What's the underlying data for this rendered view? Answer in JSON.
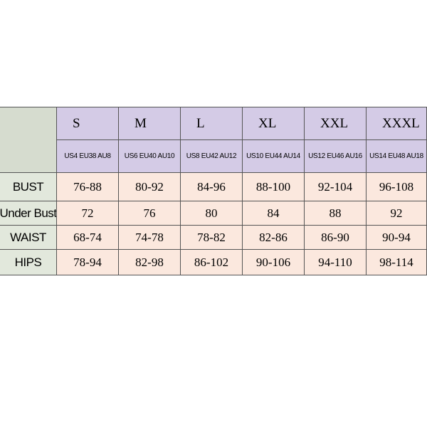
{
  "table": {
    "sizes": [
      "S",
      "M",
      "L",
      "XL",
      "XXL",
      "XXXL"
    ],
    "codes": [
      "US4 EU38 AU8",
      "US6 EU40 AU10",
      "US8 EU42  AU12",
      "US10  EU44 AU14",
      "US12 EU46 AU16",
      "US14 EU48 AU18"
    ],
    "rows": [
      [
        "BUST",
        "76-88",
        "80-92",
        "84-96",
        "88-100",
        "92-104",
        "96-108"
      ],
      [
        "Under Bust",
        "72",
        "76",
        "80",
        "84",
        "88",
        "92"
      ],
      [
        "WAIST",
        "68-74",
        "74-78",
        "78-82",
        "82-86",
        "86-90",
        "90-94"
      ],
      [
        "HIPS",
        "78-94",
        "82-98",
        "86-102",
        "90-106",
        "94-110",
        "98-114"
      ]
    ]
  }
}
